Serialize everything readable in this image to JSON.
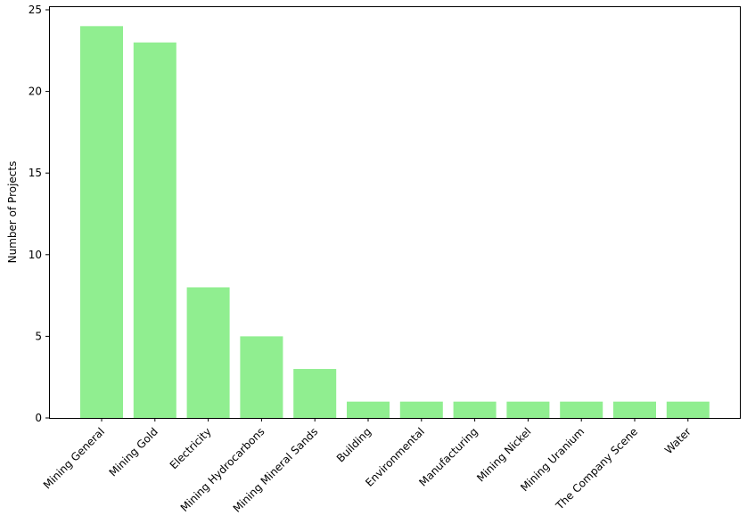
{
  "chart_data": {
    "type": "bar",
    "title": "",
    "xlabel": "",
    "ylabel": "Number of Projects",
    "ylim": [
      0,
      25
    ],
    "yticks": [
      0,
      5,
      10,
      15,
      20,
      25
    ],
    "grid": false,
    "bar_color": "#90ee90",
    "categories": [
      "Mining General",
      "Mining Gold",
      "Electricity",
      "Mining Hydrocarbons",
      "Mining Mineral Sands",
      "Building",
      "Environmental",
      "Manufacturing",
      "Mining Nickel",
      "Mining Uranium",
      "The Company Scene",
      "Water"
    ],
    "values": [
      24,
      23,
      8,
      5,
      3,
      1,
      1,
      1,
      1,
      1,
      1,
      1
    ]
  }
}
